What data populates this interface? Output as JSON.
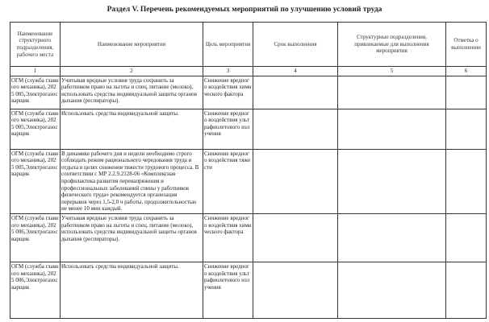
{
  "title": "Раздел V. Перечень рекомендуемых мероприятий по улучшению условий труда",
  "headers": [
    "Наименование структурного подразделения, рабочего места",
    "Наименование мероприятия",
    "Цель мероприятия",
    "Срок выполнения",
    "Структурные подразделения, привлекаемые для выполнения мероприятия",
    "Отметка о выполнении"
  ],
  "numbers": [
    "1",
    "2",
    "3",
    "4",
    "5",
    "6"
  ],
  "rows": [
    {
      "unit": "ОГМ (служба главного механика), 2025 005,Электрогазосварщик",
      "measure": "Учитывая вредные условия труда сохранить за работником право на льготы и спец. питание (молоко), использовать средства индивидуальной защиты органов дыхания (респираторы).",
      "goal": "Снижение вредного воздействия химического фактора",
      "term": "",
      "depts": "",
      "mark": ""
    },
    {
      "unit": "ОГМ (служба главного механика), 2025 005,Электрогазосварщик",
      "measure": "Использовать средства индивидуальной защиты.",
      "goal": "Снижение вредного воздействия ультрафиолетового излучения",
      "term": "",
      "depts": "",
      "mark": ""
    },
    {
      "unit": "ОГМ (служба главного механика), 2025 005,Электрогазосварщик",
      "measure": "В динамике рабочего дня и недели необходимо строго соблюдать режим рационального чередования труда и отдыха в целях снижения тяжести трудового процесса. В соответствии с МР 2.2.9.2128-06 «Комплексная профилактика развития перенапряжения и профессиональных заболеваний спины у работников физического труда» рекомендуется организация перерывов через 1,5-2,0 ч работы, продолжительностью не менее 10 мин каждый.",
      "goal": "Снижение вредного воздействия тяжести",
      "term": "",
      "depts": "",
      "mark": ""
    },
    {
      "unit": "ОГМ (служба главного механика), 2025 006,Электрогазосварщик",
      "measure": "Учитывая вредные условия труда сохранить за работником право на льготы и спец. питание (молоко), использовать средства индивидуальной защиты органов дыхания (респираторы).",
      "goal": "Снижение вредного воздействия химического фактора",
      "term": "",
      "depts": "",
      "mark": ""
    },
    {
      "unit": "ОГМ (служба главного механика), 2025 006,Электрогазосварщик",
      "measure": "Использовать средства индивидуальной защиты.",
      "goal": "Снижение вредного воздействия ультрафиолетового излучения",
      "term": "",
      "depts": "",
      "mark": ""
    }
  ]
}
